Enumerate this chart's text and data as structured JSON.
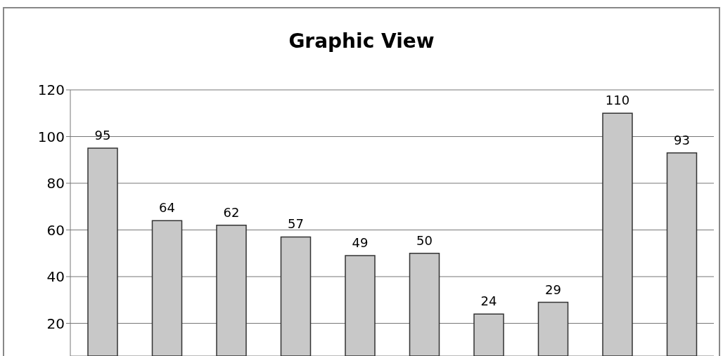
{
  "chart_data": {
    "type": "bar",
    "title": "Graphic View",
    "categories": [
      null,
      null,
      null,
      null,
      null,
      null,
      null,
      null,
      null,
      null
    ],
    "values": [
      95,
      64,
      62,
      57,
      49,
      50,
      24,
      29,
      110,
      93
    ],
    "color": "#c8c8c8",
    "ylim": [
      6,
      120
    ],
    "yticks": [
      20,
      40,
      60,
      80,
      100,
      120
    ],
    "grid": "y",
    "data_labels": true
  }
}
